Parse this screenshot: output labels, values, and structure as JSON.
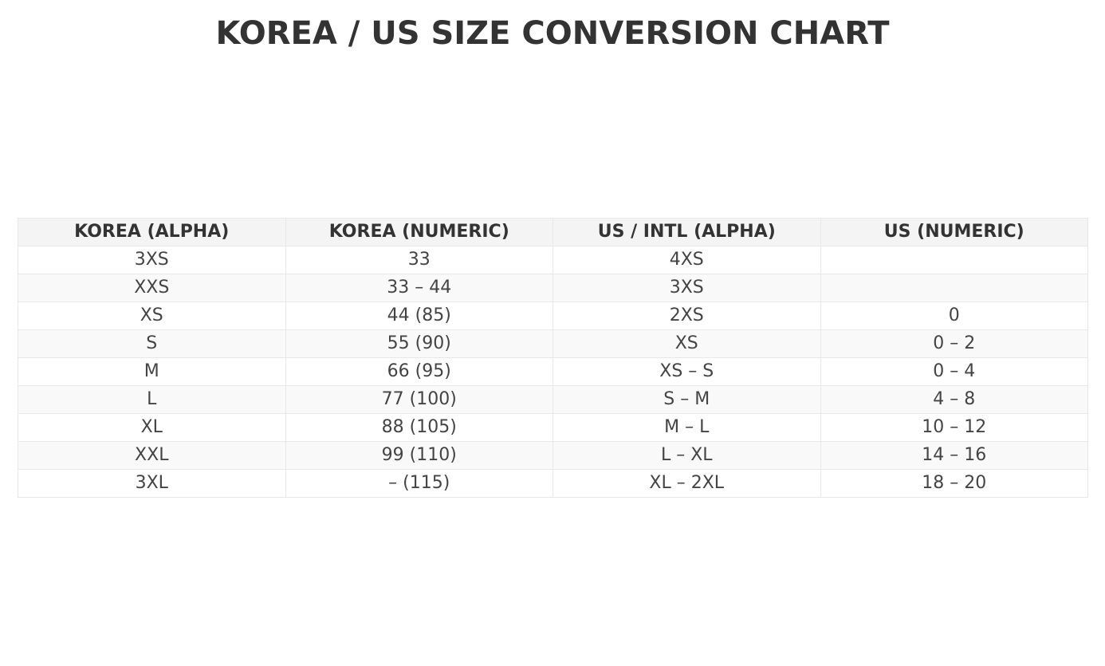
{
  "title": "KOREA / US SIZE CONVERSION CHART",
  "colors": {
    "header_bg": "#f4f4f4",
    "alt_row_bg": "#f9f9f9",
    "text": "#444444",
    "title": "#333333",
    "border": "#e8e8e8"
  },
  "chart_data": {
    "type": "table",
    "title": "KOREA / US SIZE CONVERSION CHART",
    "columns": [
      "KOREA (ALPHA)",
      "KOREA (NUMERIC)",
      "US / INTL (ALPHA)",
      "US (NUMERIC)"
    ],
    "rows": [
      [
        "3XS",
        "33",
        "4XS",
        ""
      ],
      [
        "XXS",
        "33 – 44",
        "3XS",
        ""
      ],
      [
        "XS",
        "44 (85)",
        "2XS",
        "0"
      ],
      [
        "S",
        "55 (90)",
        "XS",
        "0 – 2"
      ],
      [
        "M",
        "66 (95)",
        "XS – S",
        "0 – 4"
      ],
      [
        "L",
        "77 (100)",
        "S – M",
        "4 – 8"
      ],
      [
        "XL",
        "88 (105)",
        "M – L",
        "10 – 12"
      ],
      [
        "XXL",
        "99 (110)",
        "L – XL",
        "14 – 16"
      ],
      [
        "3XL",
        "– (115)",
        "XL – 2XL",
        "18 – 20"
      ]
    ]
  }
}
